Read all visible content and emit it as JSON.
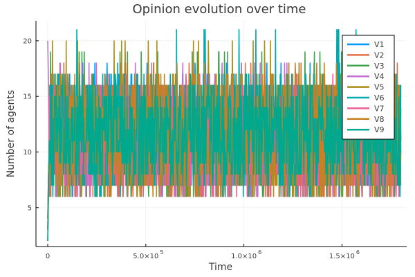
{
  "chart_data": {
    "type": "line",
    "title": "Opinion evolution over time",
    "xlabel": "Time",
    "ylabel": "Number of agents",
    "xlim": [
      -60000,
      1830000
    ],
    "ylim": [
      1.5,
      21.8
    ],
    "x_ticks": [
      {
        "value": 0,
        "label": "0",
        "exp": ""
      },
      {
        "value": 500000,
        "label": "5.0×10",
        "exp": "5"
      },
      {
        "value": 1000000,
        "label": "1.0×10",
        "exp": "6"
      },
      {
        "value": 1500000,
        "label": "1.5×10",
        "exp": "6"
      }
    ],
    "y_ticks": [
      {
        "value": 5,
        "label": "5"
      },
      {
        "value": 10,
        "label": "10"
      },
      {
        "value": 15,
        "label": "15"
      },
      {
        "value": 20,
        "label": "20"
      }
    ],
    "grid": true,
    "legend_position": "top-right",
    "x_end": 1800000,
    "series": [
      {
        "name": "V1",
        "color": "#009AFA",
        "center": 11,
        "low": 7,
        "high": 17,
        "start": 3,
        "peak": 18
      },
      {
        "name": "V2",
        "color": "#E36F47",
        "center": 11,
        "low": 6,
        "high": 16,
        "start": 4,
        "peak": 18
      },
      {
        "name": "V3",
        "color": "#3EA44E",
        "center": 10,
        "low": 6,
        "high": 16,
        "start": 3,
        "peak": 19
      },
      {
        "name": "V4",
        "color": "#C371D2",
        "center": 11,
        "low": 6,
        "high": 16,
        "start": 20,
        "peak": 18
      },
      {
        "name": "V5",
        "color": "#AC8D18",
        "center": 11,
        "low": 6,
        "high": 17,
        "start": 4,
        "peak": 20
      },
      {
        "name": "V6",
        "color": "#00A9AD",
        "center": 11,
        "low": 6,
        "high": 17,
        "start": 2,
        "peak": 21
      },
      {
        "name": "V7",
        "color": "#ED5E93",
        "center": 11,
        "low": 6,
        "high": 16,
        "start": 3,
        "peak": 17
      },
      {
        "name": "V8",
        "color": "#C68125",
        "center": 11,
        "low": 6,
        "high": 17,
        "start": 4,
        "peak": 18
      },
      {
        "name": "V9",
        "color": "#00A98D",
        "center": 11,
        "low": 7,
        "high": 16,
        "start": 2,
        "peak": 17
      }
    ]
  }
}
